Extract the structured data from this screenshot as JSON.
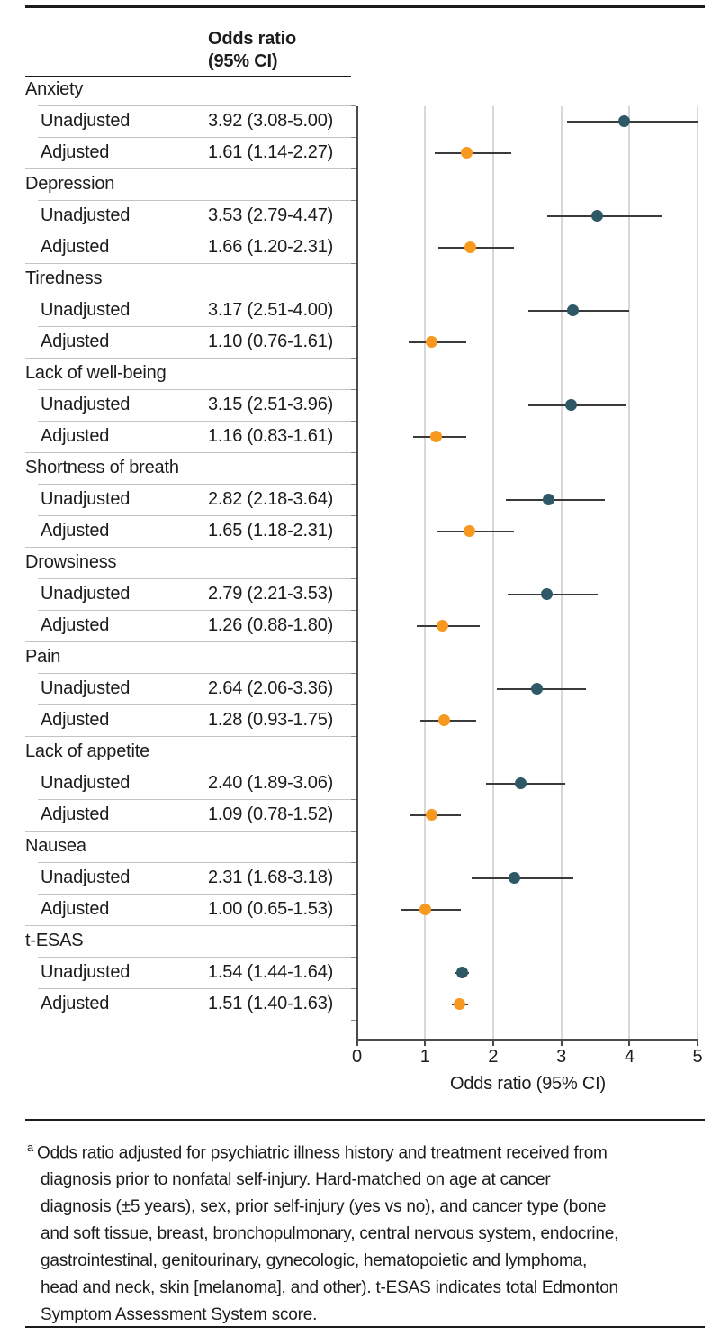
{
  "header": {
    "or_column_line1": "Odds ratio",
    "or_column_line2": "(95% CI)"
  },
  "chart_data": {
    "type": "forest",
    "xlabel": "Odds ratio (95% CI)",
    "xlim": [
      0,
      5
    ],
    "xticks": [
      0,
      1,
      2,
      3,
      4,
      5
    ],
    "grid": true,
    "series_labels": [
      "Unadjusted",
      "Adjusted"
    ],
    "series_colors": [
      "#2E5866",
      "#F6991E"
    ],
    "rows": [
      {
        "symptom": "Anxiety",
        "values": [
          {
            "or": 3.92,
            "lo": 3.08,
            "hi": 5.0
          },
          {
            "or": 1.61,
            "lo": 1.14,
            "hi": 2.27
          }
        ]
      },
      {
        "symptom": "Depression",
        "values": [
          {
            "or": 3.53,
            "lo": 2.79,
            "hi": 4.47
          },
          {
            "or": 1.66,
            "lo": 1.2,
            "hi": 2.31
          }
        ]
      },
      {
        "symptom": "Tiredness",
        "values": [
          {
            "or": 3.17,
            "lo": 2.51,
            "hi": 4.0
          },
          {
            "or": 1.1,
            "lo": 0.76,
            "hi": 1.61
          }
        ]
      },
      {
        "symptom": "Lack of well-being",
        "values": [
          {
            "or": 3.15,
            "lo": 2.51,
            "hi": 3.96
          },
          {
            "or": 1.16,
            "lo": 0.83,
            "hi": 1.61
          }
        ]
      },
      {
        "symptom": "Shortness of breath",
        "values": [
          {
            "or": 2.82,
            "lo": 2.18,
            "hi": 3.64
          },
          {
            "or": 1.65,
            "lo": 1.18,
            "hi": 2.31
          }
        ]
      },
      {
        "symptom": "Drowsiness",
        "values": [
          {
            "or": 2.79,
            "lo": 2.21,
            "hi": 3.53
          },
          {
            "or": 1.26,
            "lo": 0.88,
            "hi": 1.8
          }
        ]
      },
      {
        "symptom": "Pain",
        "values": [
          {
            "or": 2.64,
            "lo": 2.06,
            "hi": 3.36
          },
          {
            "or": 1.28,
            "lo": 0.93,
            "hi": 1.75
          }
        ]
      },
      {
        "symptom": "Lack of appetite",
        "values": [
          {
            "or": 2.4,
            "lo": 1.89,
            "hi": 3.06
          },
          {
            "or": 1.09,
            "lo": 0.78,
            "hi": 1.52
          }
        ]
      },
      {
        "symptom": "Nausea",
        "values": [
          {
            "or": 2.31,
            "lo": 1.68,
            "hi": 3.18
          },
          {
            "or": 1.0,
            "lo": 0.65,
            "hi": 1.53
          }
        ]
      },
      {
        "symptom": "t-ESAS",
        "values": [
          {
            "or": 1.54,
            "lo": 1.44,
            "hi": 1.64
          },
          {
            "or": 1.51,
            "lo": 1.4,
            "hi": 1.63
          }
        ]
      }
    ]
  },
  "footnote": {
    "marker": "a",
    "lines": [
      "Odds ratio adjusted for psychiatric illness history and treatment received from",
      "diagnosis prior to nonfatal self-injury. Hard-matched on age at cancer",
      "diagnosis (±5 years), sex, prior self-injury (yes vs no), and cancer type (bone",
      "and soft tissue, breast, bronchopulmonary, central nervous system, endocrine,",
      "gastrointestinal, genitourinary, gynecologic, hematopoietic and lymphoma,",
      "head and neck, skin [melanoma], and other). t-ESAS indicates total Edmonton",
      "Symptom Assessment System score."
    ]
  }
}
